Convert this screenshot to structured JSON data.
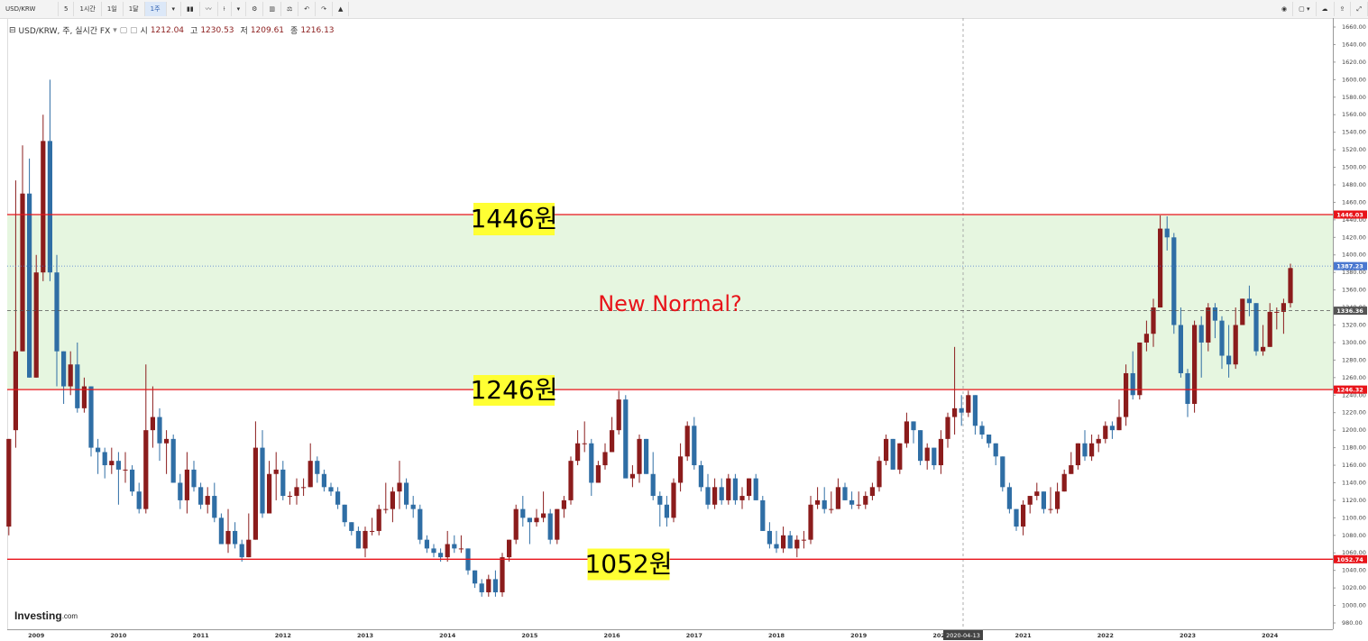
{
  "toolbar": {
    "symbol": "USD/KRW",
    "intervals": [
      "5",
      "1시간",
      "1일",
      "1달",
      "1주"
    ]
  },
  "legend": {
    "title": "USD/KRW, 주, 실시간 FX",
    "ohlc": [
      {
        "label": "시",
        "value": 1212.04
      },
      {
        "label": "고",
        "value": 1230.53
      },
      {
        "label": "저",
        "value": 1209.61
      },
      {
        "label": "종",
        "value": 1216.13
      }
    ]
  },
  "logo": {
    "name": "Investing",
    "suffix": ".com"
  },
  "chart_data": {
    "type": "candlestick",
    "up_color": "#8b1c1c",
    "down_color": "#2f6ea5",
    "ylim": [
      972.8,
      1670.3
    ],
    "yticks": [
      {
        "value": 980,
        "label": "980.00"
      },
      {
        "value": 1000,
        "label": "1000.00"
      },
      {
        "value": 1020,
        "label": "1020.00"
      },
      {
        "value": 1040,
        "label": "1040.00"
      },
      {
        "value": 1060,
        "label": "1060.00"
      },
      {
        "value": 1080,
        "label": "1080.00"
      },
      {
        "value": 1100,
        "label": "1100.00"
      },
      {
        "value": 1120,
        "label": "1120.00"
      },
      {
        "value": 1140,
        "label": "1140.00"
      },
      {
        "value": 1160,
        "label": "1160.00"
      },
      {
        "value": 1180,
        "label": "1180.00"
      },
      {
        "value": 1200,
        "label": "1200.00"
      },
      {
        "value": 1220,
        "label": "1220.00"
      },
      {
        "value": 1240,
        "label": "1240.00"
      },
      {
        "value": 1260,
        "label": "1260.00"
      },
      {
        "value": 1280,
        "label": "1280.00"
      },
      {
        "value": 1300,
        "label": "1300.00"
      },
      {
        "value": 1320,
        "label": "1320.00"
      },
      {
        "value": 1340,
        "label": "1340.00"
      },
      {
        "value": 1360,
        "label": "1360.00"
      },
      {
        "value": 1380,
        "label": "1380.00"
      },
      {
        "value": 1400,
        "label": "1400.00"
      },
      {
        "value": 1420,
        "label": "1420.00"
      },
      {
        "value": 1440,
        "label": "1440.00"
      },
      {
        "value": 1460,
        "label": "1460.00"
      },
      {
        "value": 1480,
        "label": "1480.00"
      },
      {
        "value": 1500,
        "label": "1500.00"
      },
      {
        "value": 1520,
        "label": "1520.00"
      },
      {
        "value": 1540,
        "label": "1540.00"
      },
      {
        "value": 1560,
        "label": "1560.00"
      },
      {
        "value": 1580,
        "label": "1580.00"
      },
      {
        "value": 1600,
        "label": "1600.00"
      },
      {
        "value": 1620,
        "label": "1620.00"
      },
      {
        "value": 1640,
        "label": "1640.00"
      },
      {
        "value": 1660,
        "label": "1660.00"
      }
    ],
    "categories": [
      null,
      null,
      null,
      null,
      "2009",
      null,
      null,
      null,
      null,
      null,
      null,
      null,
      null,
      null,
      null,
      null,
      "2010",
      null,
      null,
      null,
      null,
      null,
      null,
      null,
      null,
      null,
      null,
      null,
      "2011",
      null,
      null,
      null,
      null,
      null,
      null,
      null,
      null,
      null,
      null,
      null,
      "2012",
      null,
      null,
      null,
      null,
      null,
      null,
      null,
      null,
      null,
      null,
      null,
      "2013",
      null,
      null,
      null,
      null,
      null,
      null,
      null,
      null,
      null,
      null,
      null,
      "2014",
      null,
      null,
      null,
      null,
      null,
      null,
      null,
      null,
      null,
      null,
      null,
      "2015",
      null,
      null,
      null,
      null,
      null,
      null,
      null,
      null,
      null,
      null,
      null,
      "2016",
      null,
      null,
      null,
      null,
      null,
      null,
      null,
      null,
      null,
      null,
      null,
      "2017",
      null,
      null,
      null,
      null,
      null,
      null,
      null,
      null,
      null,
      null,
      null,
      "2018",
      null,
      null,
      null,
      null,
      null,
      null,
      null,
      null,
      null,
      null,
      null,
      "2019",
      null,
      null,
      null,
      null,
      null,
      null,
      null,
      null,
      null,
      null,
      null,
      "2020",
      null,
      null,
      null,
      null,
      null,
      null,
      null,
      null,
      null,
      null,
      null,
      "2021",
      null,
      null,
      null,
      null,
      null,
      null,
      null,
      null,
      null,
      null,
      null,
      "2022",
      null,
      null,
      null,
      null,
      null,
      null,
      null,
      null,
      null,
      null,
      null,
      "2023",
      null,
      null,
      null,
      null,
      null,
      null,
      null,
      null,
      null,
      null,
      null,
      "2024",
      null,
      null,
      null
    ],
    "ohlc": [
      [
        1090,
        1190,
        1080,
        1190
      ],
      [
        1200,
        1485,
        1180,
        1290
      ],
      [
        1290,
        1525,
        1290,
        1470
      ],
      [
        1470,
        1510,
        1260,
        1260
      ],
      [
        1260,
        1400,
        1260,
        1380
      ],
      [
        1380,
        1560,
        1370,
        1530
      ],
      [
        1530,
        1600,
        1370,
        1380
      ],
      [
        1380,
        1400,
        1250,
        1290
      ],
      [
        1290,
        1290,
        1230,
        1250
      ],
      [
        1250,
        1290,
        1240,
        1275
      ],
      [
        1275,
        1300,
        1220,
        1225
      ],
      [
        1225,
        1260,
        1220,
        1250
      ],
      [
        1250,
        1250,
        1170,
        1180
      ],
      [
        1180,
        1190,
        1150,
        1175
      ],
      [
        1175,
        1180,
        1145,
        1160
      ],
      [
        1160,
        1180,
        1150,
        1165
      ],
      [
        1165,
        1175,
        1115,
        1155
      ],
      [
        1155,
        1175,
        1140,
        1155
      ],
      [
        1155,
        1160,
        1125,
        1130
      ],
      [
        1130,
        1140,
        1105,
        1110
      ],
      [
        1110,
        1275,
        1105,
        1200
      ],
      [
        1200,
        1250,
        1180,
        1215
      ],
      [
        1215,
        1225,
        1165,
        1185
      ],
      [
        1185,
        1200,
        1150,
        1190
      ],
      [
        1190,
        1195,
        1140,
        1140
      ],
      [
        1140,
        1150,
        1110,
        1120
      ],
      [
        1120,
        1175,
        1105,
        1155
      ],
      [
        1155,
        1165,
        1130,
        1135
      ],
      [
        1135,
        1140,
        1110,
        1115
      ],
      [
        1115,
        1135,
        1105,
        1125
      ],
      [
        1125,
        1140,
        1095,
        1100
      ],
      [
        1100,
        1105,
        1070,
        1070
      ],
      [
        1070,
        1110,
        1060,
        1085
      ],
      [
        1085,
        1095,
        1065,
        1070
      ],
      [
        1070,
        1075,
        1050,
        1055
      ],
      [
        1055,
        1105,
        1055,
        1075
      ],
      [
        1075,
        1210,
        1075,
        1180
      ],
      [
        1180,
        1200,
        1100,
        1105
      ],
      [
        1105,
        1165,
        1105,
        1150
      ],
      [
        1150,
        1175,
        1120,
        1155
      ],
      [
        1155,
        1165,
        1120,
        1125
      ],
      [
        1125,
        1130,
        1115,
        1125
      ],
      [
        1125,
        1145,
        1115,
        1135
      ],
      [
        1135,
        1145,
        1125,
        1135
      ],
      [
        1135,
        1185,
        1135,
        1165
      ],
      [
        1165,
        1170,
        1140,
        1150
      ],
      [
        1150,
        1155,
        1130,
        1135
      ],
      [
        1135,
        1140,
        1125,
        1130
      ],
      [
        1130,
        1135,
        1110,
        1115
      ],
      [
        1115,
        1115,
        1090,
        1095
      ],
      [
        1095,
        1095,
        1080,
        1085
      ],
      [
        1085,
        1090,
        1065,
        1065
      ],
      [
        1065,
        1090,
        1055,
        1085
      ],
      [
        1085,
        1100,
        1080,
        1085
      ],
      [
        1085,
        1115,
        1080,
        1110
      ],
      [
        1110,
        1140,
        1105,
        1110
      ],
      [
        1110,
        1135,
        1095,
        1130
      ],
      [
        1130,
        1165,
        1110,
        1140
      ],
      [
        1140,
        1145,
        1110,
        1115
      ],
      [
        1115,
        1125,
        1100,
        1110
      ],
      [
        1110,
        1115,
        1070,
        1075
      ],
      [
        1075,
        1080,
        1060,
        1065
      ],
      [
        1065,
        1070,
        1055,
        1060
      ],
      [
        1060,
        1065,
        1050,
        1055
      ],
      [
        1055,
        1085,
        1050,
        1070
      ],
      [
        1070,
        1080,
        1060,
        1065
      ],
      [
        1065,
        1080,
        1060,
        1065
      ],
      [
        1065,
        1065,
        1035,
        1040
      ],
      [
        1040,
        1040,
        1020,
        1025
      ],
      [
        1025,
        1030,
        1010,
        1015
      ],
      [
        1015,
        1035,
        1010,
        1030
      ],
      [
        1030,
        1040,
        1010,
        1015
      ],
      [
        1015,
        1060,
        1010,
        1055
      ],
      [
        1055,
        1075,
        1050,
        1075
      ],
      [
        1075,
        1115,
        1070,
        1110
      ],
      [
        1110,
        1125,
        1090,
        1100
      ],
      [
        1100,
        1100,
        1070,
        1095
      ],
      [
        1095,
        1110,
        1090,
        1100
      ],
      [
        1100,
        1130,
        1095,
        1105
      ],
      [
        1105,
        1110,
        1070,
        1075
      ],
      [
        1075,
        1110,
        1070,
        1110
      ],
      [
        1110,
        1125,
        1100,
        1120
      ],
      [
        1120,
        1170,
        1115,
        1165
      ],
      [
        1165,
        1200,
        1160,
        1185
      ],
      [
        1185,
        1210,
        1175,
        1185
      ],
      [
        1185,
        1190,
        1125,
        1140
      ],
      [
        1140,
        1165,
        1140,
        1160
      ],
      [
        1160,
        1185,
        1155,
        1175
      ],
      [
        1175,
        1215,
        1175,
        1200
      ],
      [
        1200,
        1245,
        1195,
        1235
      ],
      [
        1235,
        1240,
        1150,
        1145
      ],
      [
        1145,
        1160,
        1135,
        1150
      ],
      [
        1150,
        1195,
        1140,
        1190
      ],
      [
        1190,
        1190,
        1150,
        1150
      ],
      [
        1150,
        1175,
        1120,
        1125
      ],
      [
        1125,
        1130,
        1090,
        1115
      ],
      [
        1115,
        1125,
        1090,
        1100
      ],
      [
        1100,
        1145,
        1095,
        1140
      ],
      [
        1140,
        1185,
        1130,
        1170
      ],
      [
        1170,
        1210,
        1165,
        1205
      ],
      [
        1205,
        1215,
        1155,
        1160
      ],
      [
        1160,
        1165,
        1130,
        1135
      ],
      [
        1135,
        1150,
        1110,
        1115
      ],
      [
        1115,
        1145,
        1110,
        1135
      ],
      [
        1135,
        1145,
        1115,
        1120
      ],
      [
        1120,
        1150,
        1115,
        1145
      ],
      [
        1145,
        1150,
        1115,
        1120
      ],
      [
        1120,
        1135,
        1110,
        1125
      ],
      [
        1125,
        1145,
        1120,
        1145
      ],
      [
        1145,
        1150,
        1120,
        1120
      ],
      [
        1120,
        1125,
        1085,
        1085
      ],
      [
        1085,
        1095,
        1065,
        1070
      ],
      [
        1070,
        1085,
        1060,
        1065
      ],
      [
        1065,
        1090,
        1060,
        1080
      ],
      [
        1080,
        1085,
        1065,
        1065
      ],
      [
        1065,
        1080,
        1055,
        1075
      ],
      [
        1075,
        1085,
        1065,
        1075
      ],
      [
        1075,
        1125,
        1070,
        1115
      ],
      [
        1115,
        1135,
        1110,
        1120
      ],
      [
        1120,
        1135,
        1105,
        1110
      ],
      [
        1110,
        1130,
        1105,
        1110
      ],
      [
        1110,
        1145,
        1110,
        1135
      ],
      [
        1135,
        1140,
        1120,
        1120
      ],
      [
        1120,
        1130,
        1110,
        1115
      ],
      [
        1115,
        1130,
        1110,
        1115
      ],
      [
        1115,
        1130,
        1110,
        1125
      ],
      [
        1125,
        1140,
        1120,
        1135
      ],
      [
        1135,
        1170,
        1130,
        1165
      ],
      [
        1165,
        1195,
        1160,
        1190
      ],
      [
        1190,
        1190,
        1155,
        1155
      ],
      [
        1155,
        1185,
        1150,
        1185
      ],
      [
        1185,
        1220,
        1180,
        1210
      ],
      [
        1210,
        1210,
        1185,
        1200
      ],
      [
        1200,
        1200,
        1160,
        1165
      ],
      [
        1165,
        1185,
        1155,
        1180
      ],
      [
        1180,
        1180,
        1155,
        1160
      ],
      [
        1160,
        1200,
        1150,
        1190
      ],
      [
        1190,
        1220,
        1180,
        1215
      ],
      [
        1215,
        1295,
        1195,
        1225
      ],
      [
        1225,
        1240,
        1205,
        1220
      ],
      [
        1220,
        1245,
        1215,
        1240
      ],
      [
        1240,
        1240,
        1195,
        1205
      ],
      [
        1205,
        1210,
        1190,
        1195
      ],
      [
        1195,
        1195,
        1180,
        1185
      ],
      [
        1185,
        1185,
        1160,
        1170
      ],
      [
        1170,
        1170,
        1130,
        1135
      ],
      [
        1135,
        1140,
        1105,
        1110
      ],
      [
        1110,
        1110,
        1085,
        1090
      ],
      [
        1090,
        1120,
        1080,
        1115
      ],
      [
        1115,
        1125,
        1105,
        1125
      ],
      [
        1125,
        1140,
        1120,
        1130
      ],
      [
        1130,
        1130,
        1105,
        1110
      ],
      [
        1110,
        1135,
        1105,
        1110
      ],
      [
        1110,
        1140,
        1105,
        1130
      ],
      [
        1130,
        1155,
        1130,
        1150
      ],
      [
        1150,
        1175,
        1150,
        1160
      ],
      [
        1160,
        1185,
        1155,
        1185
      ],
      [
        1185,
        1200,
        1165,
        1170
      ],
      [
        1170,
        1195,
        1165,
        1185
      ],
      [
        1185,
        1195,
        1175,
        1190
      ],
      [
        1190,
        1210,
        1185,
        1205
      ],
      [
        1205,
        1210,
        1190,
        1200
      ],
      [
        1200,
        1235,
        1200,
        1215
      ],
      [
        1215,
        1275,
        1205,
        1265
      ],
      [
        1265,
        1290,
        1235,
        1240
      ],
      [
        1240,
        1300,
        1235,
        1300
      ],
      [
        1300,
        1325,
        1290,
        1310
      ],
      [
        1310,
        1350,
        1295,
        1340
      ],
      [
        1340,
        1445,
        1340,
        1430
      ],
      [
        1430,
        1444,
        1405,
        1420
      ],
      [
        1420,
        1425,
        1310,
        1320
      ],
      [
        1320,
        1340,
        1260,
        1265
      ],
      [
        1265,
        1270,
        1215,
        1230
      ],
      [
        1230,
        1325,
        1220,
        1320
      ],
      [
        1320,
        1330,
        1260,
        1300
      ],
      [
        1300,
        1345,
        1290,
        1340
      ],
      [
        1340,
        1345,
        1305,
        1325
      ],
      [
        1325,
        1330,
        1270,
        1285
      ],
      [
        1285,
        1320,
        1260,
        1275
      ],
      [
        1275,
        1340,
        1270,
        1320
      ],
      [
        1320,
        1350,
        1320,
        1350
      ],
      [
        1350,
        1365,
        1330,
        1345
      ],
      [
        1345,
        1345,
        1285,
        1290
      ],
      [
        1290,
        1320,
        1285,
        1295
      ],
      [
        1295,
        1345,
        1295,
        1335
      ],
      [
        1335,
        1340,
        1315,
        1335
      ],
      [
        1335,
        1350,
        1310,
        1345
      ],
      [
        1345,
        1390,
        1340,
        1385
      ]
    ],
    "levels": [
      {
        "value": 1446.03,
        "color": "#e8141a",
        "style": "solid"
      },
      {
        "value": 1387.23,
        "color": "#4a78d0",
        "style": "dotted"
      },
      {
        "value": 1336.36,
        "color": "#555555",
        "style": "dashed"
      },
      {
        "value": 1246.32,
        "color": "#e8141a",
        "style": "solid"
      },
      {
        "value": 1052.74,
        "color": "#e8141a",
        "style": "solid"
      }
    ],
    "band_color": "#e6f6e0",
    "crosshair_date": "2020-04-13",
    "annotations": [
      {
        "text": "1446원",
        "highlight": "#ffff33"
      },
      {
        "text": "1246원",
        "highlight": "#ffff33"
      },
      {
        "text": "1052원",
        "highlight": "#ffff33"
      },
      {
        "text": "New Normal?",
        "color": "#e8141a"
      }
    ]
  }
}
